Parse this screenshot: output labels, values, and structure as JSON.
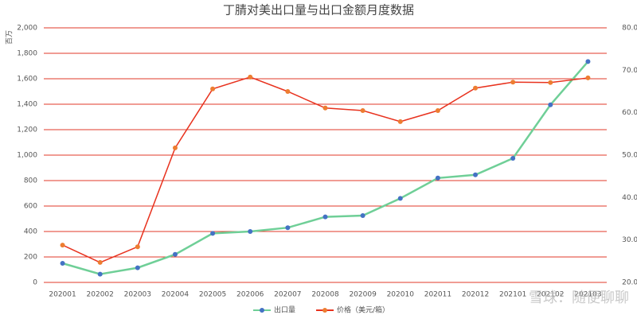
{
  "chart_data": {
    "type": "line",
    "title": "丁腈对美出口量与出口金额月度数据",
    "y_label": "百万",
    "categories": [
      "202001",
      "202002",
      "202003",
      "202004",
      "202005",
      "202006",
      "202007",
      "202008",
      "202009",
      "202010",
      "202011",
      "202012",
      "202101",
      "202102",
      "202103"
    ],
    "series": [
      {
        "name": "出口量",
        "color": "#6fcf97",
        "marker_color": "#4472c4",
        "values": [
          150,
          65,
          115,
          220,
          385,
          400,
          430,
          515,
          525,
          660,
          820,
          845,
          975,
          1395,
          1735
        ]
      },
      {
        "name": "价格（美元/箱）",
        "color": "#e8321e",
        "marker_color": "#ed7d31",
        "axis": "y2",
        "values": [
          28.8,
          24.7,
          28.4,
          51.7,
          65.6,
          68.4,
          65.0,
          61.1,
          60.5,
          57.9,
          60.5,
          65.8,
          67.2,
          67.1,
          68.2
        ]
      }
    ],
    "ylim": [
      0,
      2000
    ],
    "yticks": [
      0,
      200,
      400,
      600,
      800,
      {
        "value": 1000,
        "label": "1,000"
      },
      {
        "value": 1200,
        "label": "1,200"
      },
      {
        "value": 1400,
        "label": "1,400"
      },
      {
        "value": 1600,
        "label": "1,600"
      },
      {
        "value": 1800,
        "label": "1,800"
      },
      {
        "value": 2000,
        "label": "2,000"
      }
    ],
    "y2lim": [
      20,
      80
    ],
    "y2ticks": [
      {
        "value": 20,
        "label": "20.00"
      },
      {
        "value": 30,
        "label": "30.00"
      },
      {
        "value": 40,
        "label": "40.00"
      },
      {
        "value": 50,
        "label": "50.00"
      },
      {
        "value": 60,
        "label": "60.00"
      },
      {
        "value": 70,
        "label": "70.00"
      },
      {
        "value": 80,
        "label": "80.00"
      }
    ],
    "grid": true,
    "grid_color": "#e03a2a",
    "legend": "bottom",
    "watermark": "雪球：随便聊聊"
  }
}
